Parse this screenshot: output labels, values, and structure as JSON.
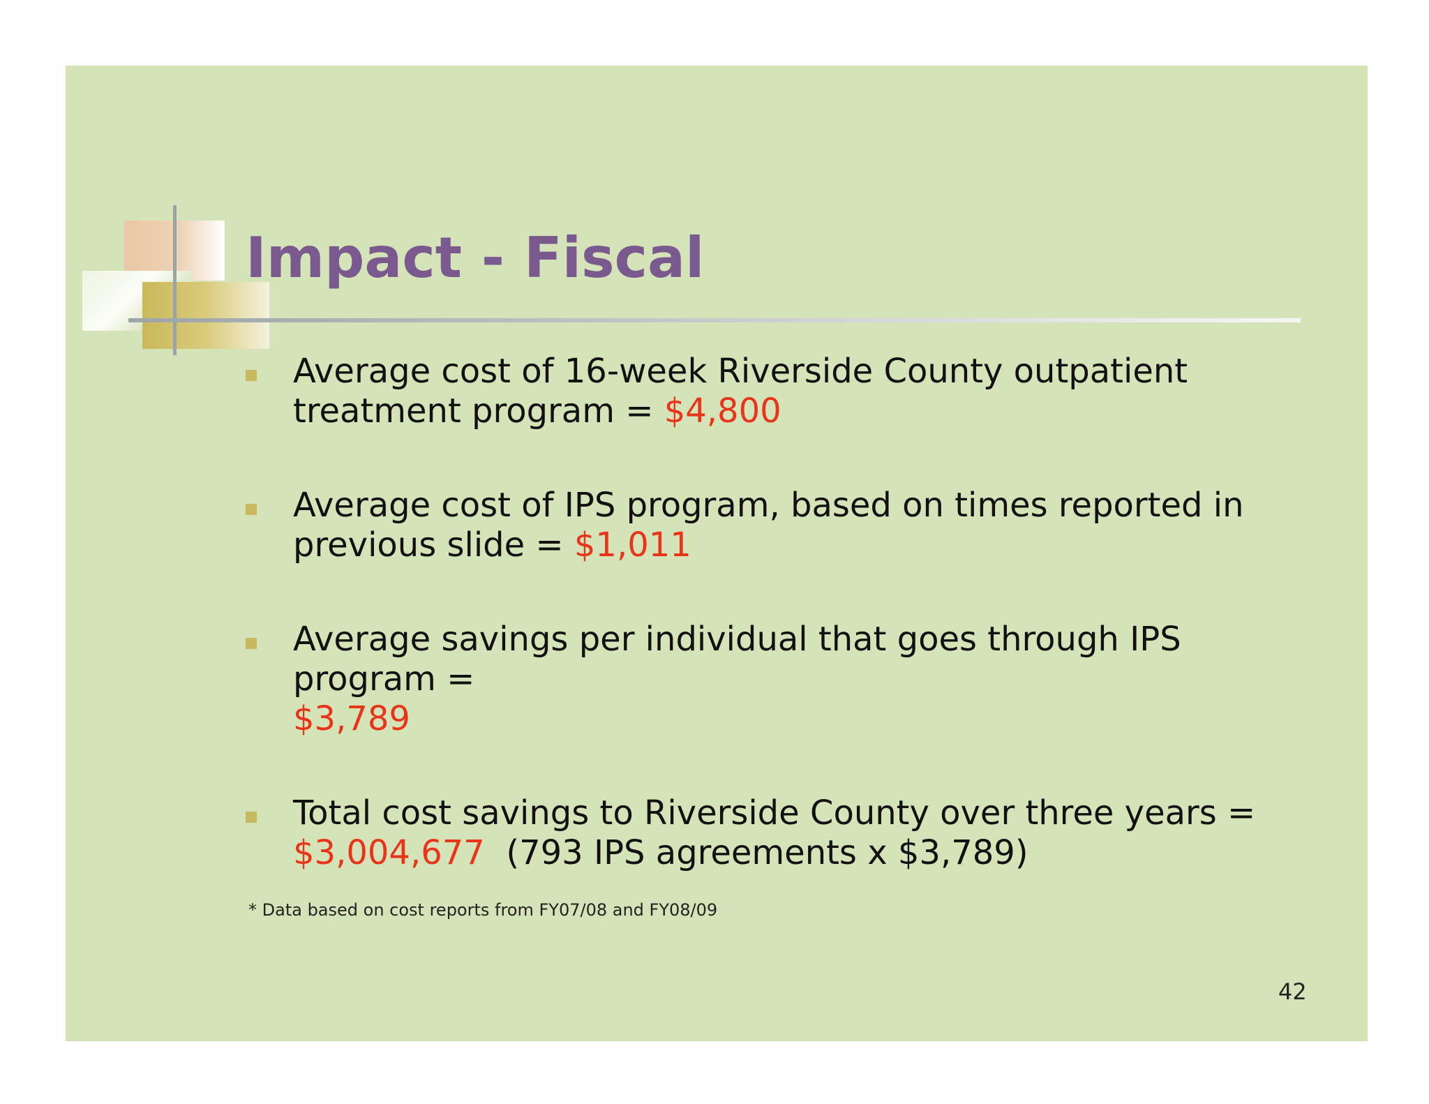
{
  "slide": {
    "title": "Impact - Fiscal",
    "bullets": [
      {
        "text_before": "Average cost of 16-week Riverside County outpatient treatment program = ",
        "highlight": "$4,800",
        "text_after": ""
      },
      {
        "text_before": "Average cost of IPS program, based on times reported in previous slide = ",
        "highlight": "$1,011",
        "text_after": ""
      },
      {
        "text_before": "Average savings per individual that goes through IPS program = ",
        "highlight": "$3,789",
        "text_after": ""
      },
      {
        "text_before": "Total cost savings to Riverside County over three years = ",
        "highlight": "$3,004,677",
        "text_after": "  (793 IPS agreements x $3,789)"
      }
    ],
    "footnote": "* Data based on cost reports from FY07/08 and FY08/09",
    "page_number": "42"
  },
  "colors": {
    "slide_background": "#d5e3b8",
    "title": "#7a5a8e",
    "highlight": "#e8351a",
    "bullet_marker": "#c8b960"
  }
}
